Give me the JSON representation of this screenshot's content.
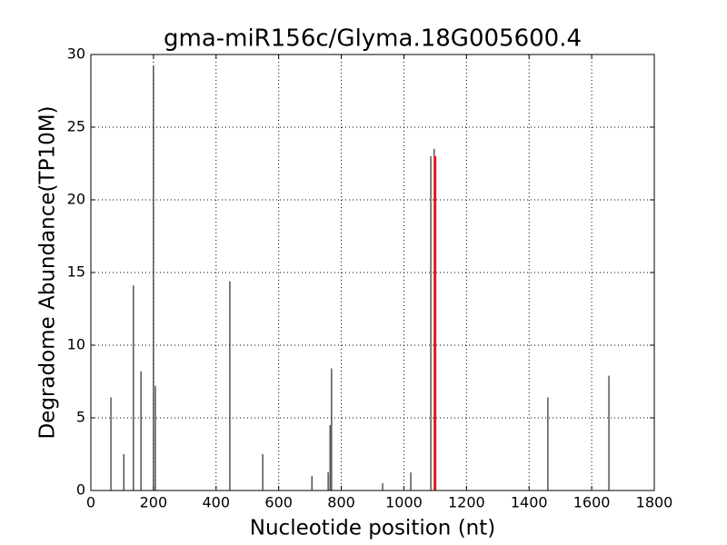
{
  "chart_data": {
    "type": "stem",
    "title": "gma-miR156c/Glyma.18G005600.4",
    "x_label": "Nucleotide position (nt)",
    "y_label": "Degradome Abundance(TP10M)",
    "series": [
      {
        "color": "#000000",
        "width": 1,
        "x": [
          64,
          105,
          136,
          160,
          200,
          206,
          444,
          549,
          706,
          758,
          764,
          769,
          932,
          1022,
          1086,
          1097,
          1460,
          1655
        ],
        "values": [
          6.4,
          2.5,
          14.1,
          8.2,
          29.2,
          7.2,
          14.4,
          2.5,
          1.0,
          1.25,
          4.5,
          8.4,
          0.5,
          1.25,
          23.0,
          23.5,
          6.4,
          7.9
        ]
      },
      {
        "color": "#ff0000",
        "width": 2.5,
        "x": [
          1100
        ],
        "values": [
          23.0
        ]
      }
    ],
    "xlim": [
      0,
      1800
    ],
    "xticks": [
      0,
      200,
      400,
      600,
      800,
      1000,
      1200,
      1400,
      1600,
      1800
    ],
    "ylim": [
      0,
      30
    ],
    "yticks": [
      0,
      5,
      10,
      15,
      20,
      25,
      30
    ],
    "grid": true
  }
}
